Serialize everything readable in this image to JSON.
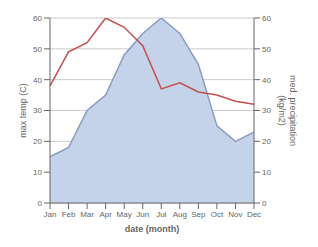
{
  "chart_data": {
    "type": "line",
    "xlabel": "date (month)",
    "ylabel": "max temp (C)",
    "y2label": "med. precipitation\n(kg/m2)",
    "categories": [
      "Jan",
      "Feb",
      "Mar",
      "Apr",
      "May",
      "Jun",
      "Jul",
      "Aug",
      "Sep",
      "Oct",
      "Nov",
      "Dec"
    ],
    "series": [
      {
        "type": "area",
        "axis": "y2",
        "color": "#c5d3ea",
        "values": [
          15,
          18,
          30,
          35,
          48,
          55,
          60,
          55,
          45,
          25,
          20,
          23
        ]
      },
      {
        "type": "line",
        "axis": "y2",
        "color": "#8a9dc0",
        "values": [
          15,
          18,
          30,
          35,
          48,
          55,
          60,
          55,
          45,
          25,
          20,
          23
        ]
      },
      {
        "type": "line",
        "color": "#c0504d",
        "values": [
          38,
          49,
          52,
          60,
          57,
          51,
          37,
          39,
          36,
          35,
          33,
          32
        ]
      }
    ],
    "ylim": [
      0,
      60
    ],
    "yticks": [
      0,
      10,
      20,
      30,
      40,
      50,
      60
    ],
    "y2lim": [
      0,
      60
    ],
    "y2ticks": [
      0,
      10,
      20,
      30,
      40,
      50,
      60
    ],
    "grid": true
  }
}
